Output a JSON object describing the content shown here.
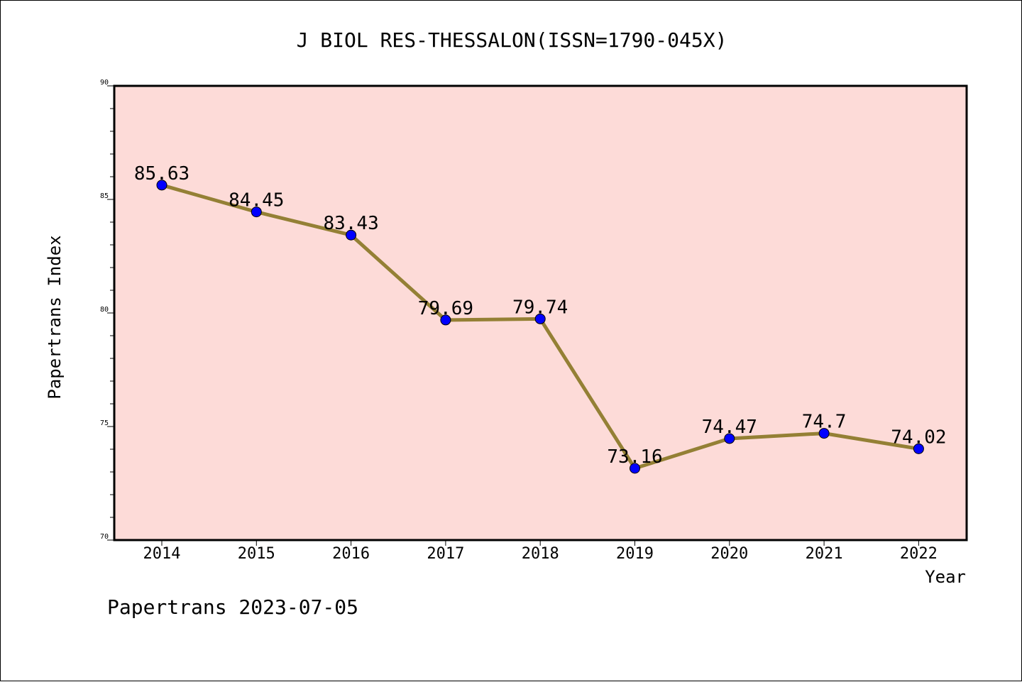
{
  "chart_data": {
    "type": "line",
    "title": "J BIOL RES-THESSALON(ISSN=1790-045X)",
    "xlabel": "Year",
    "ylabel": "Papertrans Index",
    "categories": [
      "2014",
      "2015",
      "2016",
      "2017",
      "2018",
      "2019",
      "2020",
      "2021",
      "2022"
    ],
    "values": [
      85.63,
      84.45,
      83.43,
      79.69,
      79.74,
      73.16,
      74.47,
      74.7,
      74.02
    ],
    "value_labels": [
      "85.63",
      "84.45",
      "83.43",
      "79.69",
      "79.74",
      "73.16",
      "74.47",
      "74.7",
      "74.02"
    ],
    "ylim": [
      70,
      90
    ],
    "yticks": [
      "70",
      "75",
      "80",
      "85",
      "90"
    ],
    "grid": false,
    "legend": "none",
    "colors": {
      "plot_background": "#fddbd8",
      "line": "#948035",
      "marker": "#0000ff"
    }
  },
  "footer": "Papertrans 2023-07-05"
}
